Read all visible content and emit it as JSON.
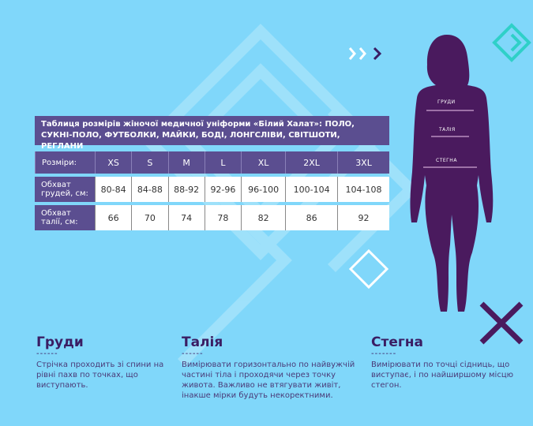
{
  "table": {
    "title": "Таблиця розмірів жіночої медичної уніформи «Білий Халат»: ПОЛО, СУКНІ-ПОЛО, ФУТБОЛКИ, МАЙКИ, БОДІ, ЛОНГСЛІВИ, СВІТШОТИ, РЕГЛАНИ",
    "header_label": "Розміри:",
    "sizes": [
      "XS",
      "S",
      "M",
      "L",
      "XL",
      "2XL",
      "3XL"
    ],
    "rows": [
      {
        "label": "Обхват грудей, см:",
        "values": [
          "80-84",
          "84-88",
          "88-92",
          "92-96",
          "96-100",
          "100-104",
          "104-108"
        ]
      },
      {
        "label": "Обхват талії, см:",
        "values": [
          "66",
          "70",
          "74",
          "78",
          "82",
          "86",
          "92"
        ]
      }
    ]
  },
  "figure": {
    "labels": [
      "ГРУДИ",
      "ТАЛІЯ",
      "СТЕГНА"
    ]
  },
  "sections": [
    {
      "title": "Груди",
      "dash": "------",
      "text": "Стрічка проходить зі спини на рівні пахв по точках, що виступають."
    },
    {
      "title": "Талія",
      "dash": "------",
      "text": "Вимірювати горизонтально по найвужчій частині тіла і проходячи через точку живота. Важливо не втягувати живіт, інакше мірки будуть некоректними."
    },
    {
      "title": "Стегна",
      "dash": "-------",
      "text": "Вимірювати по точці сідниць, що виступає, і по найширшому місцю стегон."
    }
  ],
  "colors": {
    "background": "#80d7fa",
    "purple": "#5b4e90",
    "dark": "#4a1a5e",
    "accent": "#2fd0c8"
  }
}
